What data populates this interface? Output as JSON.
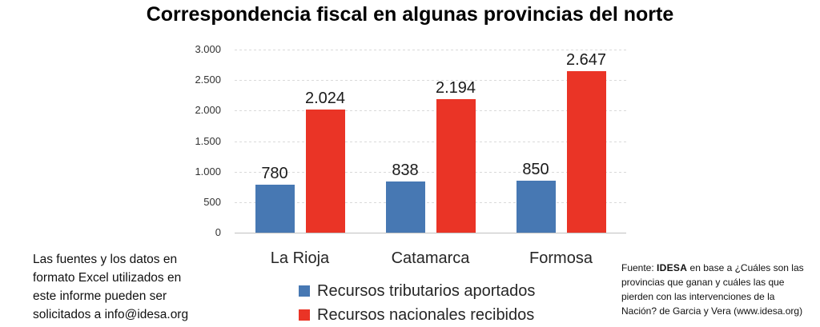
{
  "title": "Correspondencia fiscal en algunas provincias del norte",
  "chart_data": {
    "type": "bar",
    "title": "Correspondencia fiscal en algunas provincias del norte",
    "categories": [
      "La Rioja",
      "Catamarca",
      "Formosa"
    ],
    "series": [
      {
        "name": "Recursos tributarios aportados",
        "color": "#4778B3",
        "values": [
          780,
          838,
          850
        ],
        "value_labels": [
          "780",
          "838",
          "850"
        ]
      },
      {
        "name": "Recursos nacionales recibidos",
        "color": "#EA3426",
        "values": [
          2024,
          2194,
          2647
        ],
        "value_labels": [
          "2.024",
          "2.194",
          "2.647"
        ]
      }
    ],
    "ylim": [
      0,
      3000
    ],
    "yticks": [
      {
        "value": 3000,
        "label": "3.000"
      },
      {
        "value": 2500,
        "label": "2.500"
      },
      {
        "value": 2000,
        "label": "2.000"
      },
      {
        "value": 1500,
        "label": "1.500"
      },
      {
        "value": 1000,
        "label": "1.000"
      },
      {
        "value": 500,
        "label": "500"
      },
      {
        "value": 0,
        "label": "0"
      }
    ],
    "grid": "horizontal-dashed",
    "grid_color": "#D9D9D9",
    "axis_line_color": "#C0C0C0",
    "legend_position": "bottom"
  },
  "footnotes": {
    "left_note": "Las fuentes y los datos en\nformato Excel utilizados en\neste informe pueden ser\nsolicitados a info@idesa.org",
    "source_prefix": "Fuente: ",
    "source_brand": "IDESA",
    "source_rest": " en base a ¿Cuáles son las\nprovincias que ganan y cuáles las que\npierden con las intervenciones de la\nNación? de Garcia y Vera (www.idesa.org)"
  }
}
